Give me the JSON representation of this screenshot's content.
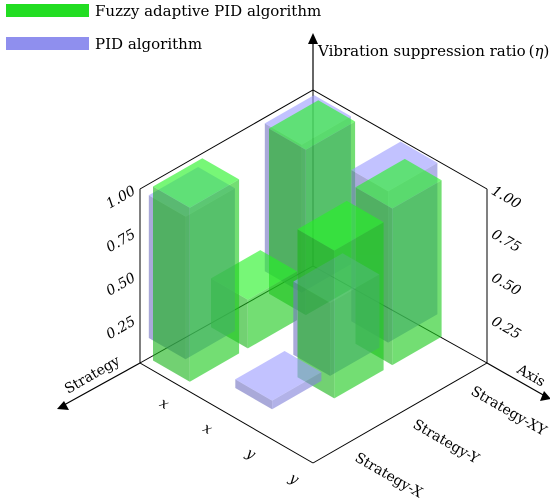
{
  "chart_data": {
    "type": "bar3d",
    "ylabel": "Vibration suppression ratio",
    "ylabel_symbol": "η",
    "yticks": [
      "0.25",
      "0.50",
      "0.75",
      "1.00"
    ],
    "ylim": [
      0,
      1
    ],
    "left_axis_label": "Strategy",
    "right_axis_label": "Axis",
    "strategies": [
      "Strategy-X",
      "Strategy-Y",
      "Strategy-XY"
    ],
    "axes_left_labels": [
      "x",
      "x",
      "y",
      "y"
    ],
    "series": [
      {
        "name": "Fuzzy adaptive PID algorithm",
        "color": "#22dd22",
        "values": [
          {
            "strategy": "Strategy-X",
            "axis": "x",
            "value": 1.0
          },
          {
            "strategy": "Strategy-Y",
            "axis": "x",
            "value": 0.28
          },
          {
            "strategy": "Strategy-XY",
            "axis": "x",
            "value": 0.95
          },
          {
            "strategy": "Strategy-Y",
            "axis": "y",
            "value": 0.85
          },
          {
            "strategy": "Strategy-XY",
            "axis": "y",
            "value": 0.9
          }
        ]
      },
      {
        "name": "PID algorithm",
        "color": "#8f8fee",
        "values": [
          {
            "strategy": "Strategy-X",
            "axis": "x",
            "value": 0.82
          },
          {
            "strategy": "Strategy-Y",
            "axis": "y",
            "value": 0.42
          },
          {
            "strategy": "Strategy-XY",
            "axis": "x",
            "value": 0.85
          },
          {
            "strategy": "Strategy-XY",
            "axis": "y",
            "value": 0.87
          },
          {
            "strategy": "Strategy-X",
            "axis": "y",
            "value": 0.05
          }
        ]
      }
    ]
  }
}
